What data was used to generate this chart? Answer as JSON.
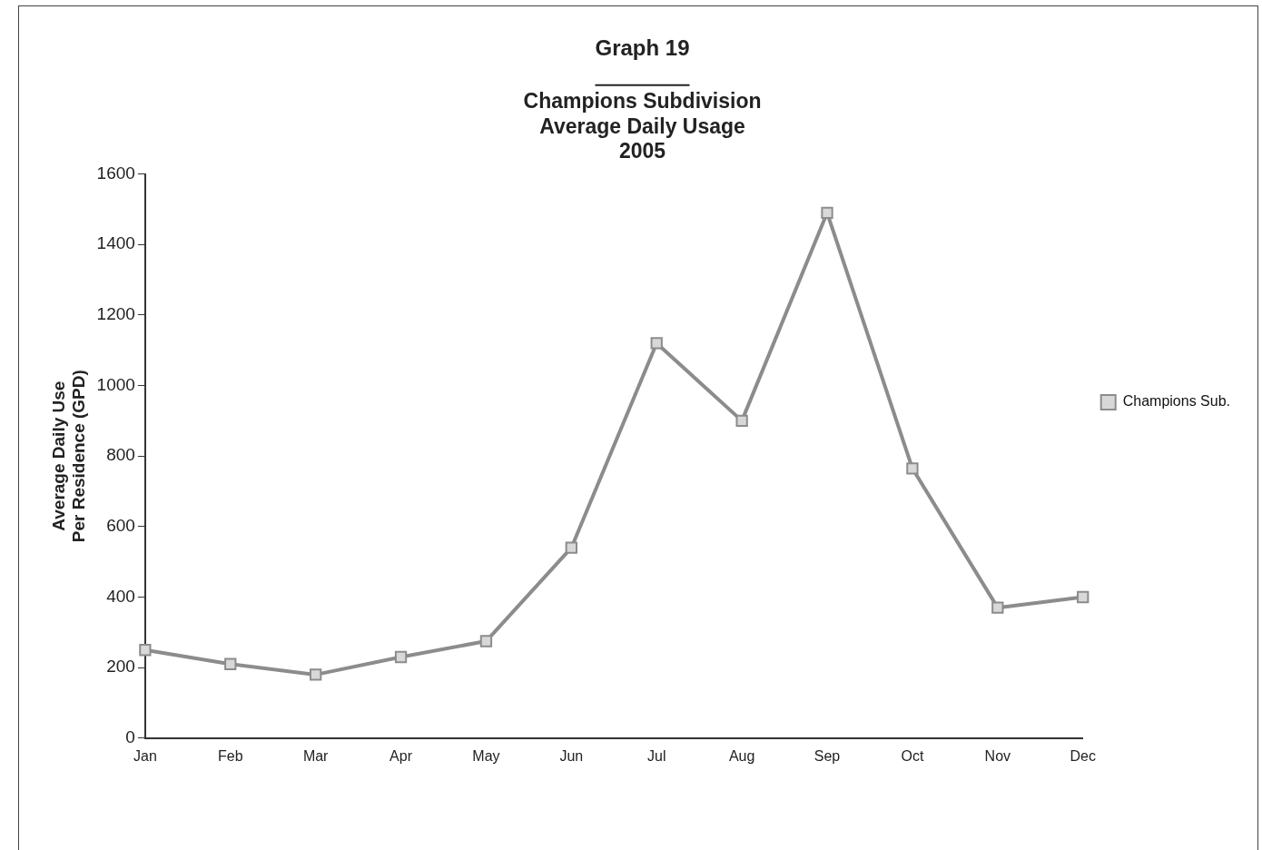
{
  "chart_data": {
    "type": "line",
    "title": "Graph 19",
    "subtitle": "Champions Subdivision\nAverage Daily Usage\n2005",
    "ylabel": "Average Daily Use\nPer Residence (GPD)",
    "categories": [
      "Jan",
      "Feb",
      "Mar",
      "Apr",
      "May",
      "Jun",
      "Jul",
      "Aug",
      "Sep",
      "Oct",
      "Nov",
      "Dec"
    ],
    "series": [
      {
        "name": "Champions Sub.",
        "color": "#8c8c8c",
        "values": [
          250,
          210,
          180,
          230,
          275,
          540,
          1120,
          900,
          1490,
          765,
          370,
          400
        ]
      }
    ],
    "ylim": [
      0,
      1600
    ],
    "yticks": [
      0,
      200,
      400,
      600,
      800,
      1000,
      1200,
      1400,
      1600
    ],
    "grid": false,
    "legend": "right",
    "marker": "square",
    "line_style": "solid"
  }
}
